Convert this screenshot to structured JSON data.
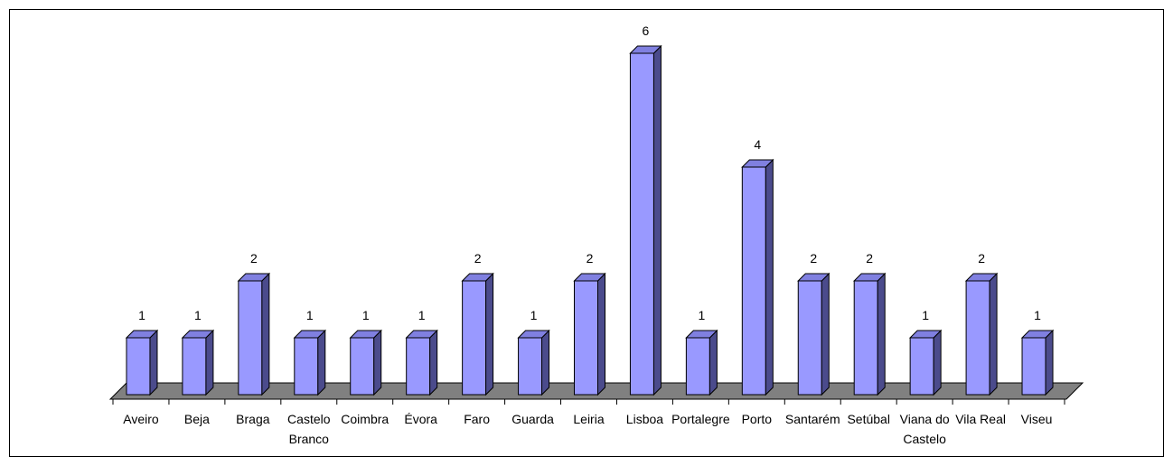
{
  "chart_data": {
    "type": "bar",
    "style": "3d-column",
    "categories": [
      "Aveiro",
      "Beja",
      "Braga",
      "Castelo Branco",
      "Coimbra",
      "Évora",
      "Faro",
      "Guarda",
      "Leiria",
      "Lisboa",
      "Portalegre",
      "Porto",
      "Santarém",
      "Setúbal",
      "Viana do Castelo",
      "Vila Real",
      "Viseu"
    ],
    "category_lines": [
      [
        "Aveiro"
      ],
      [
        "Beja"
      ],
      [
        "Braga"
      ],
      [
        "Castelo",
        "Branco"
      ],
      [
        "Coimbra"
      ],
      [
        "Évora"
      ],
      [
        "Faro"
      ],
      [
        "Guarda"
      ],
      [
        "Leiria"
      ],
      [
        "Lisboa"
      ],
      [
        "Portalegre"
      ],
      [
        "Porto"
      ],
      [
        "Santarém"
      ],
      [
        "Setúbal"
      ],
      [
        "Viana do",
        "Castelo"
      ],
      [
        "Vila Real"
      ],
      [
        "Viseu"
      ]
    ],
    "values": [
      1,
      1,
      2,
      1,
      1,
      1,
      2,
      1,
      2,
      6,
      1,
      4,
      2,
      2,
      1,
      2,
      1
    ],
    "title": "",
    "xlabel": "",
    "ylabel": "",
    "ylim": [
      0,
      6
    ],
    "grid": false,
    "legend": "none",
    "data_labels": true
  },
  "colors": {
    "bar_front": "#9999ff",
    "bar_top": "#8080e0",
    "bar_side": "#4b4b8c",
    "floor": "#808080",
    "outline": "#000000",
    "border": "#000000"
  }
}
